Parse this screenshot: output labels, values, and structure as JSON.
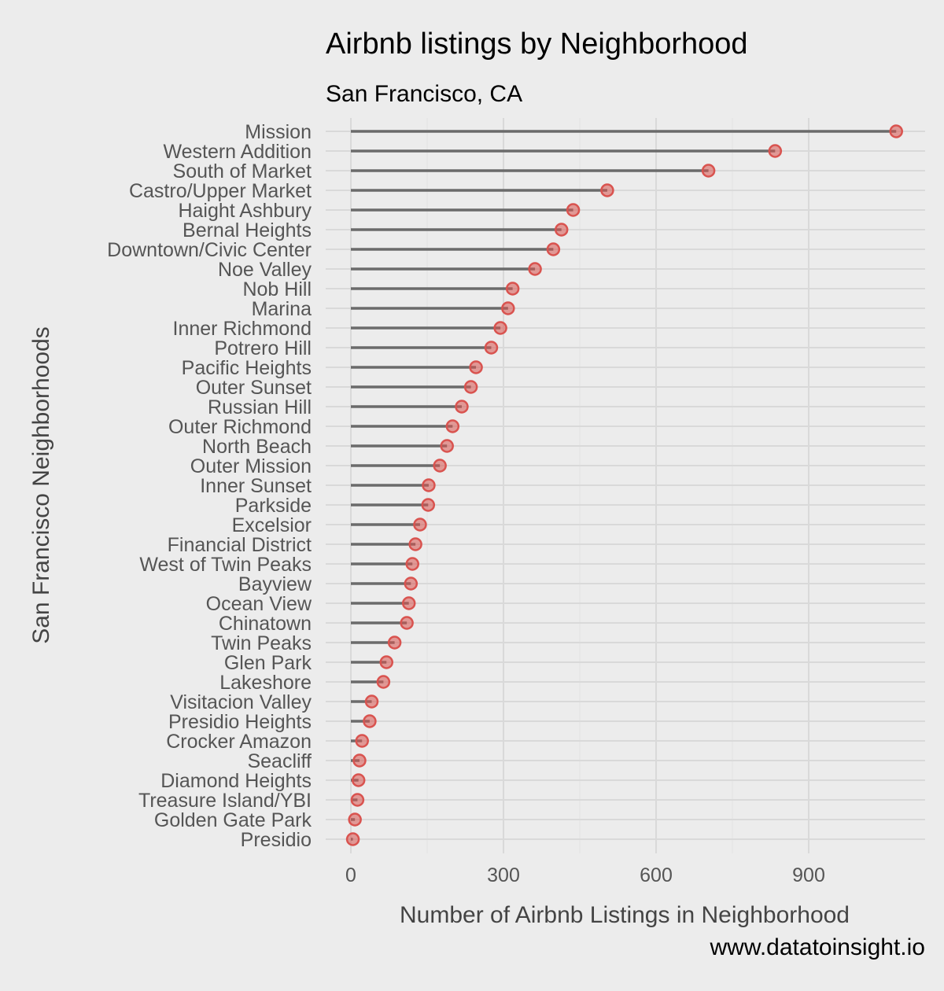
{
  "chart_data": {
    "type": "lollipop",
    "title": "Airbnb listings by Neighborhood",
    "subtitle": "San Francisco, CA",
    "xlabel": "Number of Airbnb Listings in Neighborhood",
    "ylabel": "San Francisco Neighborhoods",
    "caption": "www.datatoinsight.io",
    "xlim": [
      -50,
      1120
    ],
    "xticks": [
      0,
      300,
      600,
      900
    ],
    "grid": true,
    "orientation": "horizontal",
    "colors": {
      "stem": "#6b6b6b",
      "point": "#d9534f",
      "grid": "#d9d9d9",
      "background": "#ececec"
    },
    "categories": [
      "Mission",
      "Western Addition",
      "South of Market",
      "Castro/Upper Market",
      "Haight Ashbury",
      "Bernal Heights",
      "Downtown/Civic Center",
      "Noe Valley",
      "Nob Hill",
      "Marina",
      "Inner Richmond",
      "Potrero Hill",
      "Pacific Heights",
      "Outer Sunset",
      "Russian Hill",
      "Outer Richmond",
      "North Beach",
      "Outer Mission",
      "Inner Sunset",
      "Parkside",
      "Excelsior",
      "Financial District",
      "West of Twin Peaks",
      "Bayview",
      "Ocean View",
      "Chinatown",
      "Twin Peaks",
      "Glen Park",
      "Lakeshore",
      "Visitacion Valley",
      "Presidio Heights",
      "Crocker Amazon",
      "Seacliff",
      "Diamond Heights",
      "Treasure Island/YBI",
      "Golden Gate Park",
      "Presidio"
    ],
    "values": [
      1072,
      834,
      703,
      504,
      437,
      414,
      398,
      362,
      318,
      309,
      294,
      276,
      246,
      236,
      218,
      200,
      189,
      175,
      153,
      152,
      136,
      127,
      121,
      118,
      114,
      110,
      86,
      70,
      64,
      41,
      37,
      22,
      17,
      15,
      13,
      8,
      4
    ]
  }
}
